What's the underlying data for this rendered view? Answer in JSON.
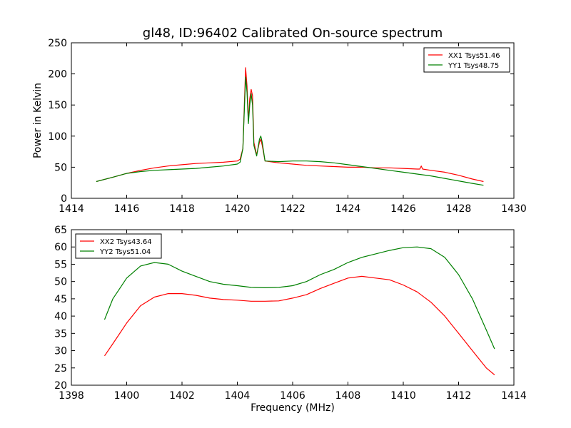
{
  "figure": {
    "title": "gl48, ID:96402 Calibrated On-source spectrum",
    "xlabel": "Frequency (MHz)",
    "ylabel_top": "Power in Kelvin"
  },
  "chart_data": [
    {
      "type": "line",
      "title": "gl48, ID:96402 Calibrated On-source spectrum",
      "xlabel": "",
      "ylabel": "Power in Kelvin",
      "xlim": [
        1414,
        1430
      ],
      "ylim": [
        0,
        250
      ],
      "xticks": [
        1414,
        1416,
        1418,
        1420,
        1422,
        1424,
        1426,
        1428,
        1430
      ],
      "yticks": [
        0,
        50,
        100,
        150,
        200,
        250
      ],
      "grid": false,
      "legend": "upper right",
      "series": [
        {
          "name": "XX1 Tsys51.46",
          "color": "#ff0000",
          "x": [
            1414.9,
            1415.5,
            1416.0,
            1416.5,
            1417.0,
            1417.5,
            1418.0,
            1418.5,
            1419.0,
            1419.5,
            1420.0,
            1420.1,
            1420.2,
            1420.3,
            1420.35,
            1420.4,
            1420.45,
            1420.5,
            1420.55,
            1420.6,
            1420.7,
            1420.8,
            1420.85,
            1420.9,
            1421.0,
            1421.5,
            1422.0,
            1422.5,
            1423.0,
            1423.5,
            1424.0,
            1424.5,
            1425.0,
            1425.5,
            1426.0,
            1426.5,
            1426.6,
            1426.65,
            1426.7,
            1427.0,
            1427.5,
            1428.0,
            1428.5,
            1428.9
          ],
          "y": [
            27,
            34,
            40,
            45,
            49,
            52,
            54,
            56,
            57,
            58,
            60,
            63,
            80,
            210,
            180,
            125,
            160,
            175,
            165,
            90,
            70,
            90,
            95,
            85,
            60,
            57,
            55,
            53,
            52,
            51,
            50,
            50,
            49,
            49,
            48,
            47,
            47,
            52,
            47,
            45,
            42,
            37,
            31,
            27
          ]
        },
        {
          "name": "YY1 Tsys48.75",
          "color": "#008000",
          "x": [
            1414.9,
            1415.5,
            1416.0,
            1416.5,
            1417.0,
            1417.5,
            1418.0,
            1418.5,
            1419.0,
            1419.5,
            1420.0,
            1420.1,
            1420.2,
            1420.3,
            1420.35,
            1420.4,
            1420.45,
            1420.5,
            1420.55,
            1420.6,
            1420.7,
            1420.8,
            1420.85,
            1420.9,
            1421.0,
            1421.5,
            1422.0,
            1422.5,
            1423.0,
            1423.5,
            1424.0,
            1424.5,
            1425.0,
            1425.5,
            1426.0,
            1426.5,
            1427.0,
            1427.5,
            1428.0,
            1428.5,
            1428.9
          ],
          "y": [
            27,
            34,
            40,
            43,
            45,
            46,
            47,
            48,
            50,
            52,
            55,
            58,
            80,
            195,
            170,
            120,
            150,
            168,
            150,
            85,
            68,
            95,
            100,
            90,
            60,
            59,
            60,
            60,
            59,
            57,
            54,
            51,
            48,
            45,
            42,
            39,
            36,
            32,
            28,
            24,
            21
          ]
        }
      ]
    },
    {
      "type": "line",
      "title": "",
      "xlabel": "Frequency (MHz)",
      "ylabel": "",
      "xlim": [
        1398,
        1414
      ],
      "ylim": [
        20,
        65
      ],
      "xticks": [
        1398,
        1400,
        1402,
        1404,
        1406,
        1408,
        1410,
        1412,
        1414
      ],
      "yticks": [
        20,
        25,
        30,
        35,
        40,
        45,
        50,
        55,
        60,
        65
      ],
      "grid": false,
      "legend": "upper left",
      "series": [
        {
          "name": "XX2 Tsys43.64",
          "color": "#ff0000",
          "x": [
            1399.2,
            1399.5,
            1400.0,
            1400.5,
            1401.0,
            1401.5,
            1402.0,
            1402.5,
            1403.0,
            1403.5,
            1404.0,
            1404.5,
            1405.0,
            1405.5,
            1406.0,
            1406.5,
            1407.0,
            1407.5,
            1408.0,
            1408.5,
            1409.0,
            1409.5,
            1410.0,
            1410.5,
            1411.0,
            1411.5,
            1412.0,
            1412.5,
            1413.0,
            1413.3
          ],
          "y": [
            28.5,
            32,
            38,
            43,
            45.5,
            46.5,
            46.5,
            46,
            45.2,
            44.8,
            44.6,
            44.3,
            44.3,
            44.4,
            45.2,
            46.2,
            48,
            49.5,
            51,
            51.5,
            51,
            50.5,
            49,
            47,
            44,
            40,
            35,
            30,
            25,
            23
          ]
        },
        {
          "name": "YY2 Tsys51.04",
          "color": "#008000",
          "x": [
            1399.2,
            1399.5,
            1400.0,
            1400.5,
            1401.0,
            1401.5,
            1402.0,
            1402.5,
            1403.0,
            1403.5,
            1404.0,
            1404.5,
            1405.0,
            1405.5,
            1406.0,
            1406.5,
            1407.0,
            1407.5,
            1408.0,
            1408.5,
            1409.0,
            1409.5,
            1410.0,
            1410.5,
            1411.0,
            1411.5,
            1412.0,
            1412.5,
            1413.0,
            1413.3
          ],
          "y": [
            39,
            45,
            51,
            54.5,
            55.5,
            55,
            53,
            51.5,
            50,
            49.2,
            48.8,
            48.3,
            48.2,
            48.3,
            48.8,
            50,
            52,
            53.5,
            55.5,
            57,
            58,
            59,
            59.8,
            60,
            59.5,
            57,
            52,
            45,
            36,
            30.5
          ]
        }
      ]
    }
  ]
}
